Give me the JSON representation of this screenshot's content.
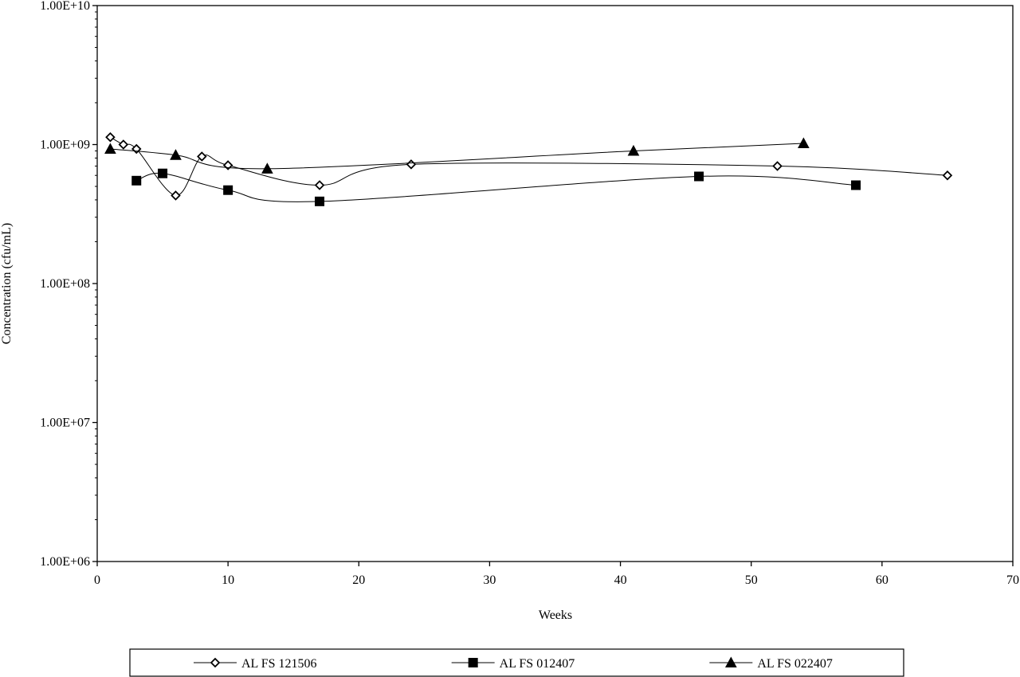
{
  "chart_data": {
    "type": "line",
    "title": "",
    "xlabel": "Weeks",
    "ylabel": "Concentration (cfu/mL)",
    "x_scale": "linear",
    "y_scale": "log",
    "xlim": [
      0,
      70
    ],
    "ylim": [
      1000000,
      10000000000
    ],
    "x_ticks": [
      0,
      10,
      20,
      30,
      40,
      50,
      60,
      70
    ],
    "x_tick_labels": [
      "0",
      "10",
      "20",
      "30",
      "40",
      "50",
      "60",
      "70"
    ],
    "y_ticks": [
      1000000,
      10000000,
      100000000,
      1000000000,
      10000000000
    ],
    "y_tick_labels": [
      "1.00E+06",
      "1.00E+07",
      "1.00E+08",
      "1.00E+09",
      "1.00E+10"
    ],
    "grid": false,
    "legend_position": "bottom",
    "line_color": "#000000",
    "series": [
      {
        "name": "AL FS 121506",
        "marker": "open-diamond",
        "x": [
          1,
          2,
          3,
          6,
          8,
          10,
          17,
          24,
          52,
          65
        ],
        "y": [
          1130000000,
          1000000000,
          930000000,
          430000000,
          820000000,
          710000000,
          510000000,
          720000000,
          700000000,
          600000000
        ]
      },
      {
        "name": "AL FS 012407",
        "marker": "filled-square",
        "x": [
          3,
          5,
          10,
          17,
          46,
          58
        ],
        "y": [
          550000000,
          620000000,
          470000000,
          390000000,
          590000000,
          510000000
        ]
      },
      {
        "name": "AL FS 022407",
        "marker": "filled-triangle",
        "x": [
          1,
          6,
          13,
          41,
          54
        ],
        "y": [
          930000000,
          840000000,
          670000000,
          900000000,
          1020000000
        ]
      }
    ]
  }
}
